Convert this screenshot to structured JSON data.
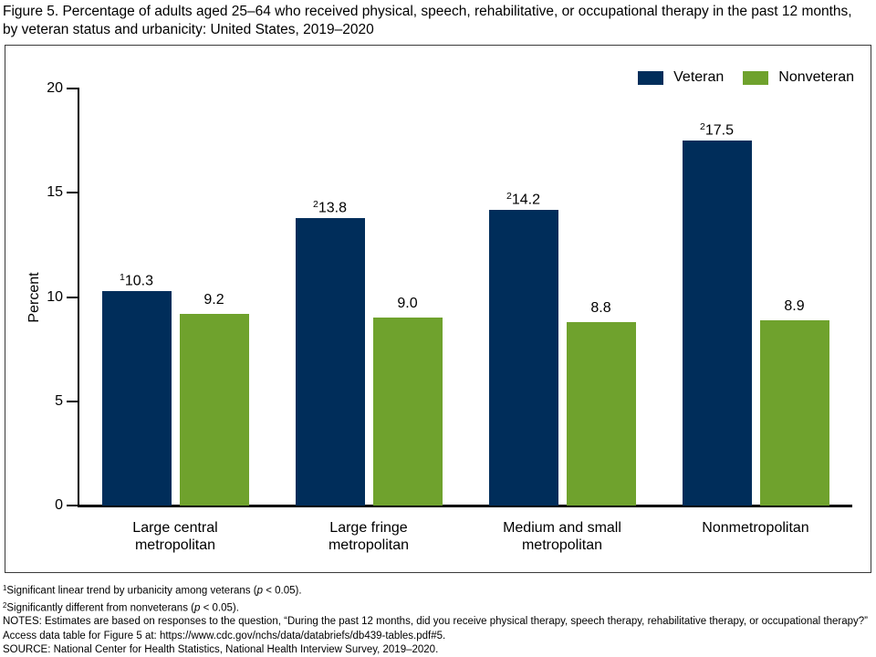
{
  "title": "Figure 5. Percentage of adults aged 25–64 who received physical, speech, rehabilitative, or occupational therapy in the past 12 months, by veteran status and urbanicity: United States, 2019–2020",
  "colors": {
    "veteran": "#002D5A",
    "nonveteran": "#6FA22D",
    "axis": "#000000",
    "frame_border": "#3a3a3a",
    "text": "#000000"
  },
  "legend": [
    {
      "label": "Veteran",
      "color_key": "veteran"
    },
    {
      "label": "Nonveteran",
      "color_key": "nonveteran"
    }
  ],
  "chart_data": {
    "type": "bar",
    "title": "",
    "xlabel": "",
    "ylabel": "Percent",
    "ylim": [
      0,
      20
    ],
    "yticks": [
      0,
      5,
      10,
      15,
      20
    ],
    "grid": false,
    "legend_position": "top-right",
    "categories": [
      "Large central metropolitan",
      "Large fringe metropolitan",
      "Medium and small metropolitan",
      "Nonmetropolitan"
    ],
    "category_display_lines": [
      "Large central\nmetropolitan",
      "Large fringe\nmetropolitan",
      "Medium and small\nmetropolitan",
      "Nonmetropolitan"
    ],
    "series": [
      {
        "name": "Veteran",
        "color_key": "veteran",
        "values": [
          10.3,
          13.8,
          14.2,
          17.5
        ],
        "value_labels": [
          {
            "sup": "1",
            "text": "10.3"
          },
          {
            "sup": "2",
            "text": "13.8"
          },
          {
            "sup": "2",
            "text": "14.2"
          },
          {
            "sup": "2",
            "text": "17.5"
          }
        ]
      },
      {
        "name": "Nonveteran",
        "color_key": "nonveteran",
        "values": [
          9.2,
          9.0,
          8.8,
          8.9
        ],
        "value_labels": [
          {
            "sup": "",
            "text": "9.2"
          },
          {
            "sup": "",
            "text": "9.0"
          },
          {
            "sup": "",
            "text": "8.8"
          },
          {
            "sup": "",
            "text": "8.9"
          }
        ]
      }
    ]
  },
  "footnotes": [
    {
      "parts": [
        {
          "sup": "1"
        },
        {
          "t": "Significant linear trend by urbanicity among veterans ("
        },
        {
          "i": "p"
        },
        {
          "t": " < 0.05)."
        }
      ]
    },
    {
      "parts": [
        {
          "sup": "2"
        },
        {
          "t": "Significantly different from nonveterans ("
        },
        {
          "i": "p"
        },
        {
          "t": " < 0.05)."
        }
      ]
    },
    {
      "parts": [
        {
          "t": "NOTES: Estimates are based on responses to the question, “During the past 12 months, did you receive physical therapy, speech therapy, rehabilitative therapy, or occupational therapy?” Access data table for Figure 5 at: https://www.cdc.gov/nchs/data/databriefs/db439-tables.pdf#5."
        }
      ]
    },
    {
      "parts": [
        {
          "t": "SOURCE: National Center for Health Statistics, National Health Interview Survey, 2019–2020."
        }
      ]
    }
  ]
}
